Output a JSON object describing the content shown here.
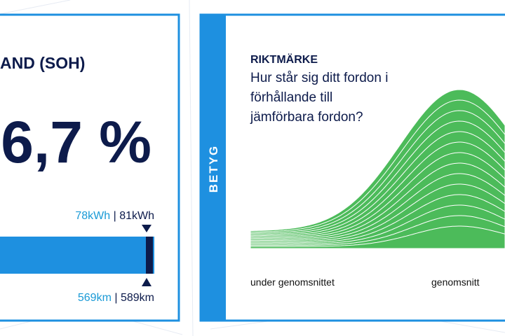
{
  "soh_card": {
    "title": "AND (SOH)",
    "value": "6,7 %",
    "capacity_current": "78kWh",
    "capacity_max": "81kWh",
    "range_current": "569km",
    "range_max": "589km",
    "separator": "|"
  },
  "benchmark_card": {
    "sidebar": "BETYG",
    "title": "RIKTMÄRKE",
    "question_lines": [
      "Hur står sig ditt fordon i",
      "förhållande till",
      "jämförbara fordon?"
    ],
    "labels": [
      "under genomsnittet",
      "genomsnitt"
    ]
  }
}
